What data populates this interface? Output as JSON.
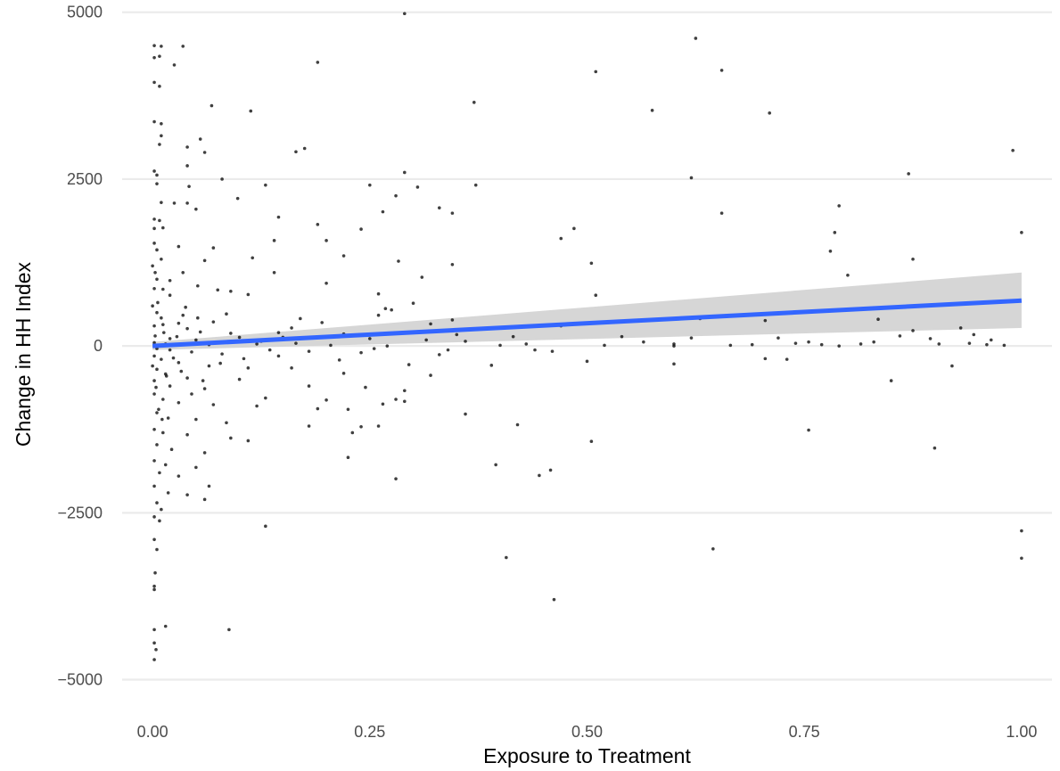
{
  "chart_data": {
    "type": "scatter",
    "title": "",
    "xlabel": "Exposure to Treatment",
    "ylabel": "Change in HH Index",
    "xlim": [
      -0.035,
      1.035
    ],
    "ylim": [
      -5300,
      5050
    ],
    "x_ticks": [
      0.0,
      0.25,
      0.5,
      0.75,
      1.0
    ],
    "x_tick_labels": [
      "0.00",
      "0.25",
      "0.50",
      "0.75",
      "1.00"
    ],
    "y_ticks": [
      -5000,
      -2500,
      0,
      2500,
      5000
    ],
    "y_tick_labels": [
      "−5000",
      "−2500",
      "0",
      "2500",
      "5000"
    ],
    "grid": true,
    "legend": "none",
    "colors": {
      "points": "#000000",
      "fit_line": "#3366FF",
      "confidence_band": "#d4d4d4",
      "grid": "#ebebeb"
    },
    "fit_line": {
      "x": [
        0.0,
        1.0
      ],
      "y": [
        0,
        680
      ]
    },
    "confidence_band": {
      "x": [
        0.0,
        1.0
      ],
      "lower": [
        -60,
        270
      ],
      "upper": [
        60,
        1100
      ]
    },
    "points": [
      [
        0.29,
        4980
      ],
      [
        0.625,
        4610
      ],
      [
        0.002,
        4500
      ],
      [
        0.01,
        4490
      ],
      [
        0.035,
        4490
      ],
      [
        0.002,
        4320
      ],
      [
        0.008,
        4340
      ],
      [
        0.025,
        4210
      ],
      [
        0.19,
        4250
      ],
      [
        0.655,
        4130
      ],
      [
        0.51,
        4110
      ],
      [
        0.002,
        3950
      ],
      [
        0.008,
        3890
      ],
      [
        0.37,
        3650
      ],
      [
        0.068,
        3600
      ],
      [
        0.575,
        3530
      ],
      [
        0.113,
        3520
      ],
      [
        0.71,
        3490
      ],
      [
        0.002,
        3360
      ],
      [
        0.01,
        3330
      ],
      [
        0.01,
        3150
      ],
      [
        0.055,
        3100
      ],
      [
        0.008,
        3020
      ],
      [
        0.04,
        2980
      ],
      [
        0.175,
        2960
      ],
      [
        0.165,
        2910
      ],
      [
        0.06,
        2900
      ],
      [
        0.99,
        2930
      ],
      [
        0.04,
        2700
      ],
      [
        0.002,
        2620
      ],
      [
        0.005,
        2560
      ],
      [
        0.87,
        2580
      ],
      [
        0.29,
        2600
      ],
      [
        0.62,
        2520
      ],
      [
        0.08,
        2500
      ],
      [
        0.005,
        2430
      ],
      [
        0.13,
        2410
      ],
      [
        0.25,
        2410
      ],
      [
        0.372,
        2410
      ],
      [
        0.042,
        2390
      ],
      [
        0.305,
        2380
      ],
      [
        0.28,
        2250
      ],
      [
        0.098,
        2210
      ],
      [
        0.01,
        2150
      ],
      [
        0.025,
        2140
      ],
      [
        0.33,
        2070
      ],
      [
        0.04,
        2140
      ],
      [
        0.345,
        1990
      ],
      [
        0.265,
        2010
      ],
      [
        0.655,
        1990
      ],
      [
        0.05,
        2050
      ],
      [
        0.002,
        1900
      ],
      [
        0.008,
        1880
      ],
      [
        0.145,
        1930
      ],
      [
        0.79,
        2100
      ],
      [
        0.002,
        1760
      ],
      [
        0.19,
        1820
      ],
      [
        0.485,
        1760
      ],
      [
        0.24,
        1750
      ],
      [
        0.012,
        1770
      ],
      [
        0.785,
        1700
      ],
      [
        1.0,
        1700
      ],
      [
        0.47,
        1610
      ],
      [
        0.002,
        1540
      ],
      [
        0.14,
        1580
      ],
      [
        0.2,
        1580
      ],
      [
        0.03,
        1490
      ],
      [
        0.005,
        1440
      ],
      [
        0.07,
        1470
      ],
      [
        0.78,
        1420
      ],
      [
        0.22,
        1350
      ],
      [
        0.115,
        1320
      ],
      [
        0.01,
        1300
      ],
      [
        0.06,
        1280
      ],
      [
        0.505,
        1240
      ],
      [
        0.875,
        1300
      ],
      [
        0.283,
        1270
      ],
      [
        0.345,
        1220
      ],
      [
        0.14,
        1100
      ],
      [
        0.035,
        1100
      ],
      [
        0.8,
        1060
      ],
      [
        0.31,
        1030
      ],
      [
        0.005,
        1000
      ],
      [
        0.02,
        980
      ],
      [
        0.2,
        940
      ],
      [
        0.052,
        900
      ],
      [
        0.002,
        860
      ],
      [
        0.012,
        850
      ],
      [
        0.075,
        840
      ],
      [
        0.09,
        820
      ],
      [
        0.26,
        780
      ],
      [
        0.02,
        760
      ],
      [
        0.11,
        770
      ],
      [
        0.51,
        760
      ],
      [
        0.268,
        560
      ],
      [
        0.275,
        540
      ],
      [
        0.3,
        640
      ],
      [
        0.26,
        460
      ],
      [
        0.005,
        500
      ],
      [
        0.035,
        460
      ],
      [
        0.052,
        420
      ],
      [
        0.085,
        480
      ],
      [
        0.17,
        410
      ],
      [
        0.345,
        390
      ],
      [
        0.705,
        380
      ],
      [
        0.835,
        400
      ],
      [
        0.002,
        300
      ],
      [
        0.012,
        320
      ],
      [
        0.04,
        260
      ],
      [
        0.055,
        210
      ],
      [
        0.145,
        200
      ],
      [
        0.22,
        180
      ],
      [
        0.32,
        330
      ],
      [
        0.38,
        260
      ],
      [
        0.62,
        120
      ],
      [
        0.72,
        120
      ],
      [
        0.93,
        270
      ],
      [
        0.945,
        170
      ],
      [
        0.1,
        130
      ],
      [
        0.003,
        150
      ],
      [
        0.028,
        140
      ],
      [
        0.25,
        110
      ],
      [
        0.36,
        70
      ],
      [
        0.43,
        30
      ],
      [
        0.6,
        30
      ],
      [
        0.69,
        20
      ],
      [
        0.77,
        20
      ],
      [
        0.83,
        60
      ],
      [
        0.895,
        110
      ],
      [
        0.98,
        10
      ],
      [
        0.002,
        50
      ],
      [
        0.015,
        30
      ],
      [
        0.065,
        20
      ],
      [
        0.12,
        30
      ],
      [
        0.165,
        40
      ],
      [
        0.205,
        10
      ],
      [
        0.27,
        0
      ],
      [
        0.4,
        10
      ],
      [
        0.46,
        -80
      ],
      [
        0.52,
        10
      ],
      [
        0.6,
        0
      ],
      [
        0.73,
        -200
      ],
      [
        0.79,
        0
      ],
      [
        0.74,
        40
      ],
      [
        0.875,
        230
      ],
      [
        0.96,
        20
      ],
      [
        0.005,
        -40
      ],
      [
        0.02,
        -60
      ],
      [
        0.045,
        -90
      ],
      [
        0.08,
        -120
      ],
      [
        0.145,
        -150
      ],
      [
        0.18,
        -80
      ],
      [
        0.24,
        -100
      ],
      [
        0.34,
        -60
      ],
      [
        0.44,
        -60
      ],
      [
        0.5,
        -230
      ],
      [
        0.6,
        -270
      ],
      [
        0.705,
        -190
      ],
      [
        0.92,
        -300
      ],
      [
        0.85,
        -520
      ],
      [
        0.002,
        -150
      ],
      [
        0.01,
        -200
      ],
      [
        0.03,
        -250
      ],
      [
        0.065,
        -300
      ],
      [
        0.11,
        -330
      ],
      [
        0.16,
        -330
      ],
      [
        0.22,
        -410
      ],
      [
        0.295,
        -280
      ],
      [
        0.32,
        -440
      ],
      [
        0.005,
        -350
      ],
      [
        0.015,
        -420
      ],
      [
        0.04,
        -480
      ],
      [
        0.1,
        -500
      ],
      [
        0.18,
        -600
      ],
      [
        0.245,
        -620
      ],
      [
        0.29,
        -670
      ],
      [
        0.002,
        -520
      ],
      [
        0.02,
        -600
      ],
      [
        0.06,
        -640
      ],
      [
        0.13,
        -780
      ],
      [
        0.2,
        -810
      ],
      [
        0.265,
        -870
      ],
      [
        0.28,
        -800
      ],
      [
        0.002,
        -720
      ],
      [
        0.012,
        -800
      ],
      [
        0.03,
        -850
      ],
      [
        0.07,
        -880
      ],
      [
        0.12,
        -900
      ],
      [
        0.19,
        -940
      ],
      [
        0.225,
        -950
      ],
      [
        0.29,
        -830
      ],
      [
        0.005,
        -1000
      ],
      [
        0.018,
        -1080
      ],
      [
        0.05,
        -1100
      ],
      [
        0.085,
        -1150
      ],
      [
        0.18,
        -1200
      ],
      [
        0.24,
        -1210
      ],
      [
        0.26,
        -1200
      ],
      [
        0.36,
        -1020
      ],
      [
        0.42,
        -1180
      ],
      [
        0.755,
        -1260
      ],
      [
        0.002,
        -1250
      ],
      [
        0.012,
        -1300
      ],
      [
        0.04,
        -1330
      ],
      [
        0.09,
        -1380
      ],
      [
        0.11,
        -1420
      ],
      [
        0.23,
        -1300
      ],
      [
        0.505,
        -1430
      ],
      [
        0.9,
        -1530
      ],
      [
        0.005,
        -1480
      ],
      [
        0.022,
        -1550
      ],
      [
        0.06,
        -1600
      ],
      [
        0.225,
        -1670
      ],
      [
        0.002,
        -1720
      ],
      [
        0.015,
        -1780
      ],
      [
        0.05,
        -1820
      ],
      [
        0.395,
        -1780
      ],
      [
        0.445,
        -1940
      ],
      [
        0.458,
        -1860
      ],
      [
        0.28,
        -1990
      ],
      [
        0.008,
        -1900
      ],
      [
        0.03,
        -1950
      ],
      [
        0.065,
        -2100
      ],
      [
        0.002,
        -2100
      ],
      [
        0.018,
        -2200
      ],
      [
        0.04,
        -2230
      ],
      [
        0.06,
        -2300
      ],
      [
        0.005,
        -2350
      ],
      [
        0.01,
        -2450
      ],
      [
        0.002,
        -2560
      ],
      [
        0.008,
        -2620
      ],
      [
        0.13,
        -2700
      ],
      [
        1.0,
        -2770
      ],
      [
        0.002,
        -2900
      ],
      [
        0.005,
        -3050
      ],
      [
        0.645,
        -3040
      ],
      [
        0.407,
        -3170
      ],
      [
        1.0,
        -3180
      ],
      [
        0.003,
        -3400
      ],
      [
        0.002,
        -3600
      ],
      [
        0.002,
        -3650
      ],
      [
        0.462,
        -3800
      ],
      [
        0.002,
        -4250
      ],
      [
        0.088,
        -4250
      ],
      [
        0.002,
        -4450
      ],
      [
        0.004,
        -4550
      ],
      [
        0.002,
        -4700
      ],
      [
        0.015,
        -4200
      ],
      [
        0.0,
        1200
      ],
      [
        0.0,
        600
      ],
      [
        0.0,
        -300
      ],
      [
        0.003,
        1100
      ],
      [
        0.004,
        -620
      ],
      [
        0.006,
        650
      ],
      [
        0.007,
        -950
      ],
      [
        0.01,
        420
      ],
      [
        0.011,
        -1100
      ],
      [
        0.013,
        200
      ],
      [
        0.016,
        -450
      ],
      [
        0.02,
        110
      ],
      [
        0.024,
        -180
      ],
      [
        0.03,
        340
      ],
      [
        0.033,
        -380
      ],
      [
        0.038,
        580
      ],
      [
        0.045,
        -720
      ],
      [
        0.05,
        90
      ],
      [
        0.058,
        -520
      ],
      [
        0.07,
        360
      ],
      [
        0.078,
        -260
      ],
      [
        0.09,
        190
      ],
      [
        0.105,
        -190
      ],
      [
        0.125,
        70
      ],
      [
        0.135,
        -60
      ],
      [
        0.15,
        130
      ],
      [
        0.16,
        270
      ],
      [
        0.195,
        350
      ],
      [
        0.215,
        -210
      ],
      [
        0.235,
        160
      ],
      [
        0.255,
        -40
      ],
      [
        0.315,
        90
      ],
      [
        0.33,
        -130
      ],
      [
        0.35,
        170
      ],
      [
        0.39,
        -290
      ],
      [
        0.415,
        140
      ],
      [
        0.47,
        300
      ],
      [
        0.54,
        140
      ],
      [
        0.565,
        60
      ],
      [
        0.63,
        410
      ],
      [
        0.665,
        10
      ],
      [
        0.755,
        60
      ],
      [
        0.815,
        30
      ],
      [
        0.86,
        150
      ],
      [
        0.905,
        30
      ],
      [
        0.94,
        40
      ],
      [
        0.965,
        90
      ]
    ]
  }
}
